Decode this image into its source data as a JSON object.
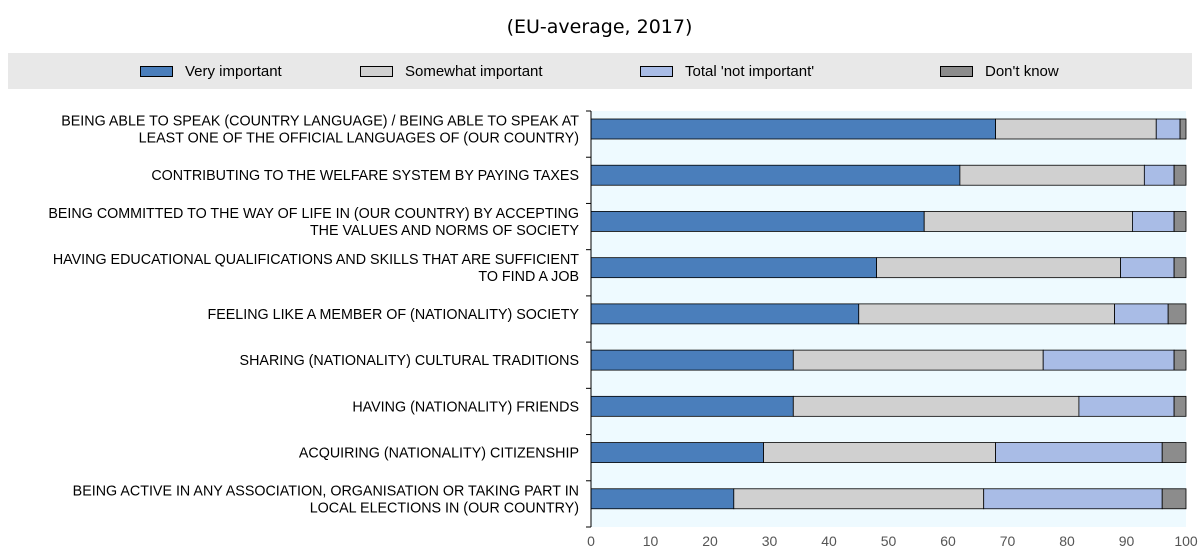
{
  "chart_data": {
    "type": "bar",
    "orientation": "horizontal",
    "stacked": true,
    "title": "(EU-average, 2017)",
    "categories": [
      [
        "BEING ABLE TO SPEAK (COUNTRY LANGUAGE) / BEING ABLE TO SPEAK AT",
        "LEAST ONE OF THE OFFICIAL LANGUAGES OF (OUR COUNTRY)"
      ],
      [
        "CONTRIBUTING TO THE WELFARE SYSTEM BY PAYING TAXES"
      ],
      [
        "BEING COMMITTED TO THE WAY OF LIFE IN (OUR COUNTRY) BY ACCEPTING",
        "THE VALUES AND NORMS OF SOCIETY"
      ],
      [
        "HAVING EDUCATIONAL QUALIFICATIONS AND SKILLS THAT ARE SUFFICIENT",
        "TO FIND A JOB"
      ],
      [
        "FEELING LIKE A MEMBER OF (NATIONALITY) SOCIETY"
      ],
      [
        "SHARING (NATIONALITY) CULTURAL TRADITIONS"
      ],
      [
        "HAVING (NATIONALITY) FRIENDS"
      ],
      [
        "ACQUIRING (NATIONALITY) CITIZENSHIP"
      ],
      [
        "BEING ACTIVE IN ANY ASSOCIATION, ORGANISATION OR TAKING PART IN",
        "LOCAL ELECTIONS IN (OUR COUNTRY)"
      ]
    ],
    "series": [
      {
        "name": "Very important",
        "color": "#4a7ebb",
        "values": [
          68,
          62,
          56,
          48,
          45,
          34,
          34,
          29,
          24
        ]
      },
      {
        "name": "Somewhat important",
        "color": "#d0d0d0",
        "values": [
          27,
          31,
          35,
          41,
          43,
          42,
          48,
          39,
          42
        ]
      },
      {
        "name": "Total 'not important'",
        "color": "#a9bce6",
        "values": [
          4,
          5,
          7,
          9,
          9,
          22,
          16,
          28,
          30
        ]
      },
      {
        "name": "Don't know",
        "color": "#8c8c8c",
        "values": [
          1,
          2,
          2,
          2,
          3,
          2,
          2,
          4,
          4
        ]
      }
    ],
    "xlim": [
      0,
      100
    ],
    "xticks": [
      0,
      10,
      20,
      30,
      40,
      50,
      60,
      70,
      80,
      90,
      100
    ],
    "xlabel": "",
    "ylabel": "",
    "legend_position": "top",
    "grid": false,
    "plot_background": "#eefaff",
    "legend_background": "#e8e8e8"
  }
}
